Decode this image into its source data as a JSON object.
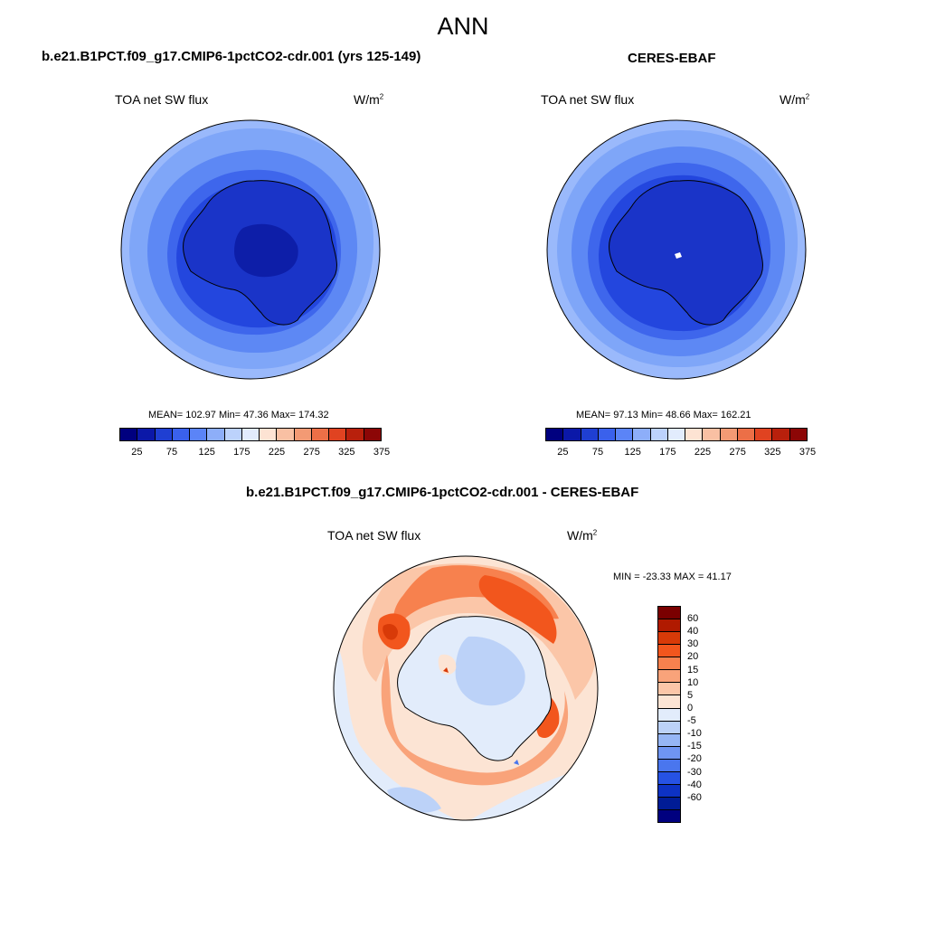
{
  "main_title": "ANN",
  "panels": [
    {
      "title": "b.e21.B1PCT.f09_g17.CMIP6-1pctCO2-cdr.001 (yrs 125-149)",
      "variable": "TOA net SW flux",
      "unit": "W/m",
      "unit_exp": "2",
      "stats": "MEAN= 102.97  Min=  47.36  Max= 174.32"
    },
    {
      "title": "CERES-EBAF",
      "variable": "TOA net SW flux",
      "unit": "W/m",
      "unit_exp": "2",
      "stats": "MEAN=  97.13  Min=  48.66  Max= 162.21"
    },
    {
      "title": "b.e21.B1PCT.f09_g17.CMIP6-1pctCO2-cdr.001 - CERES-EBAF",
      "variable": "TOA net SW flux",
      "unit": "W/m",
      "unit_exp": "2",
      "stats": "MIN = -23.33 MAX =  41.17"
    }
  ],
  "colorbar_top": {
    "colors": [
      "#00007f",
      "#0b18a8",
      "#1f3fd2",
      "#3a61ec",
      "#5b84f7",
      "#8daef9",
      "#bcd2fc",
      "#e2ecfd",
      "#fde3d3",
      "#f9c0a3",
      "#f39a74",
      "#ec6f47",
      "#e04321",
      "#b8200c",
      "#8c0606"
    ],
    "ticks": [
      "25",
      "75",
      "125",
      "175",
      "225",
      "275",
      "325",
      "375"
    ]
  },
  "colorbar_diff": {
    "colors": [
      "#7a0000",
      "#b01a00",
      "#d83a08",
      "#f2561d",
      "#f7814e",
      "#f9a37a",
      "#fbc6a8",
      "#fce4d4",
      "#e2ecfb",
      "#bcd2f8",
      "#96b6f5",
      "#6f95f2",
      "#4a76ee",
      "#2652e4",
      "#0d32c4",
      "#001c96",
      "#00007f"
    ],
    "ticks": [
      "60",
      "40",
      "30",
      "20",
      "15",
      "10",
      "5",
      "0",
      "-5",
      "-10",
      "-15",
      "-20",
      "-30",
      "-40",
      "-60"
    ]
  }
}
